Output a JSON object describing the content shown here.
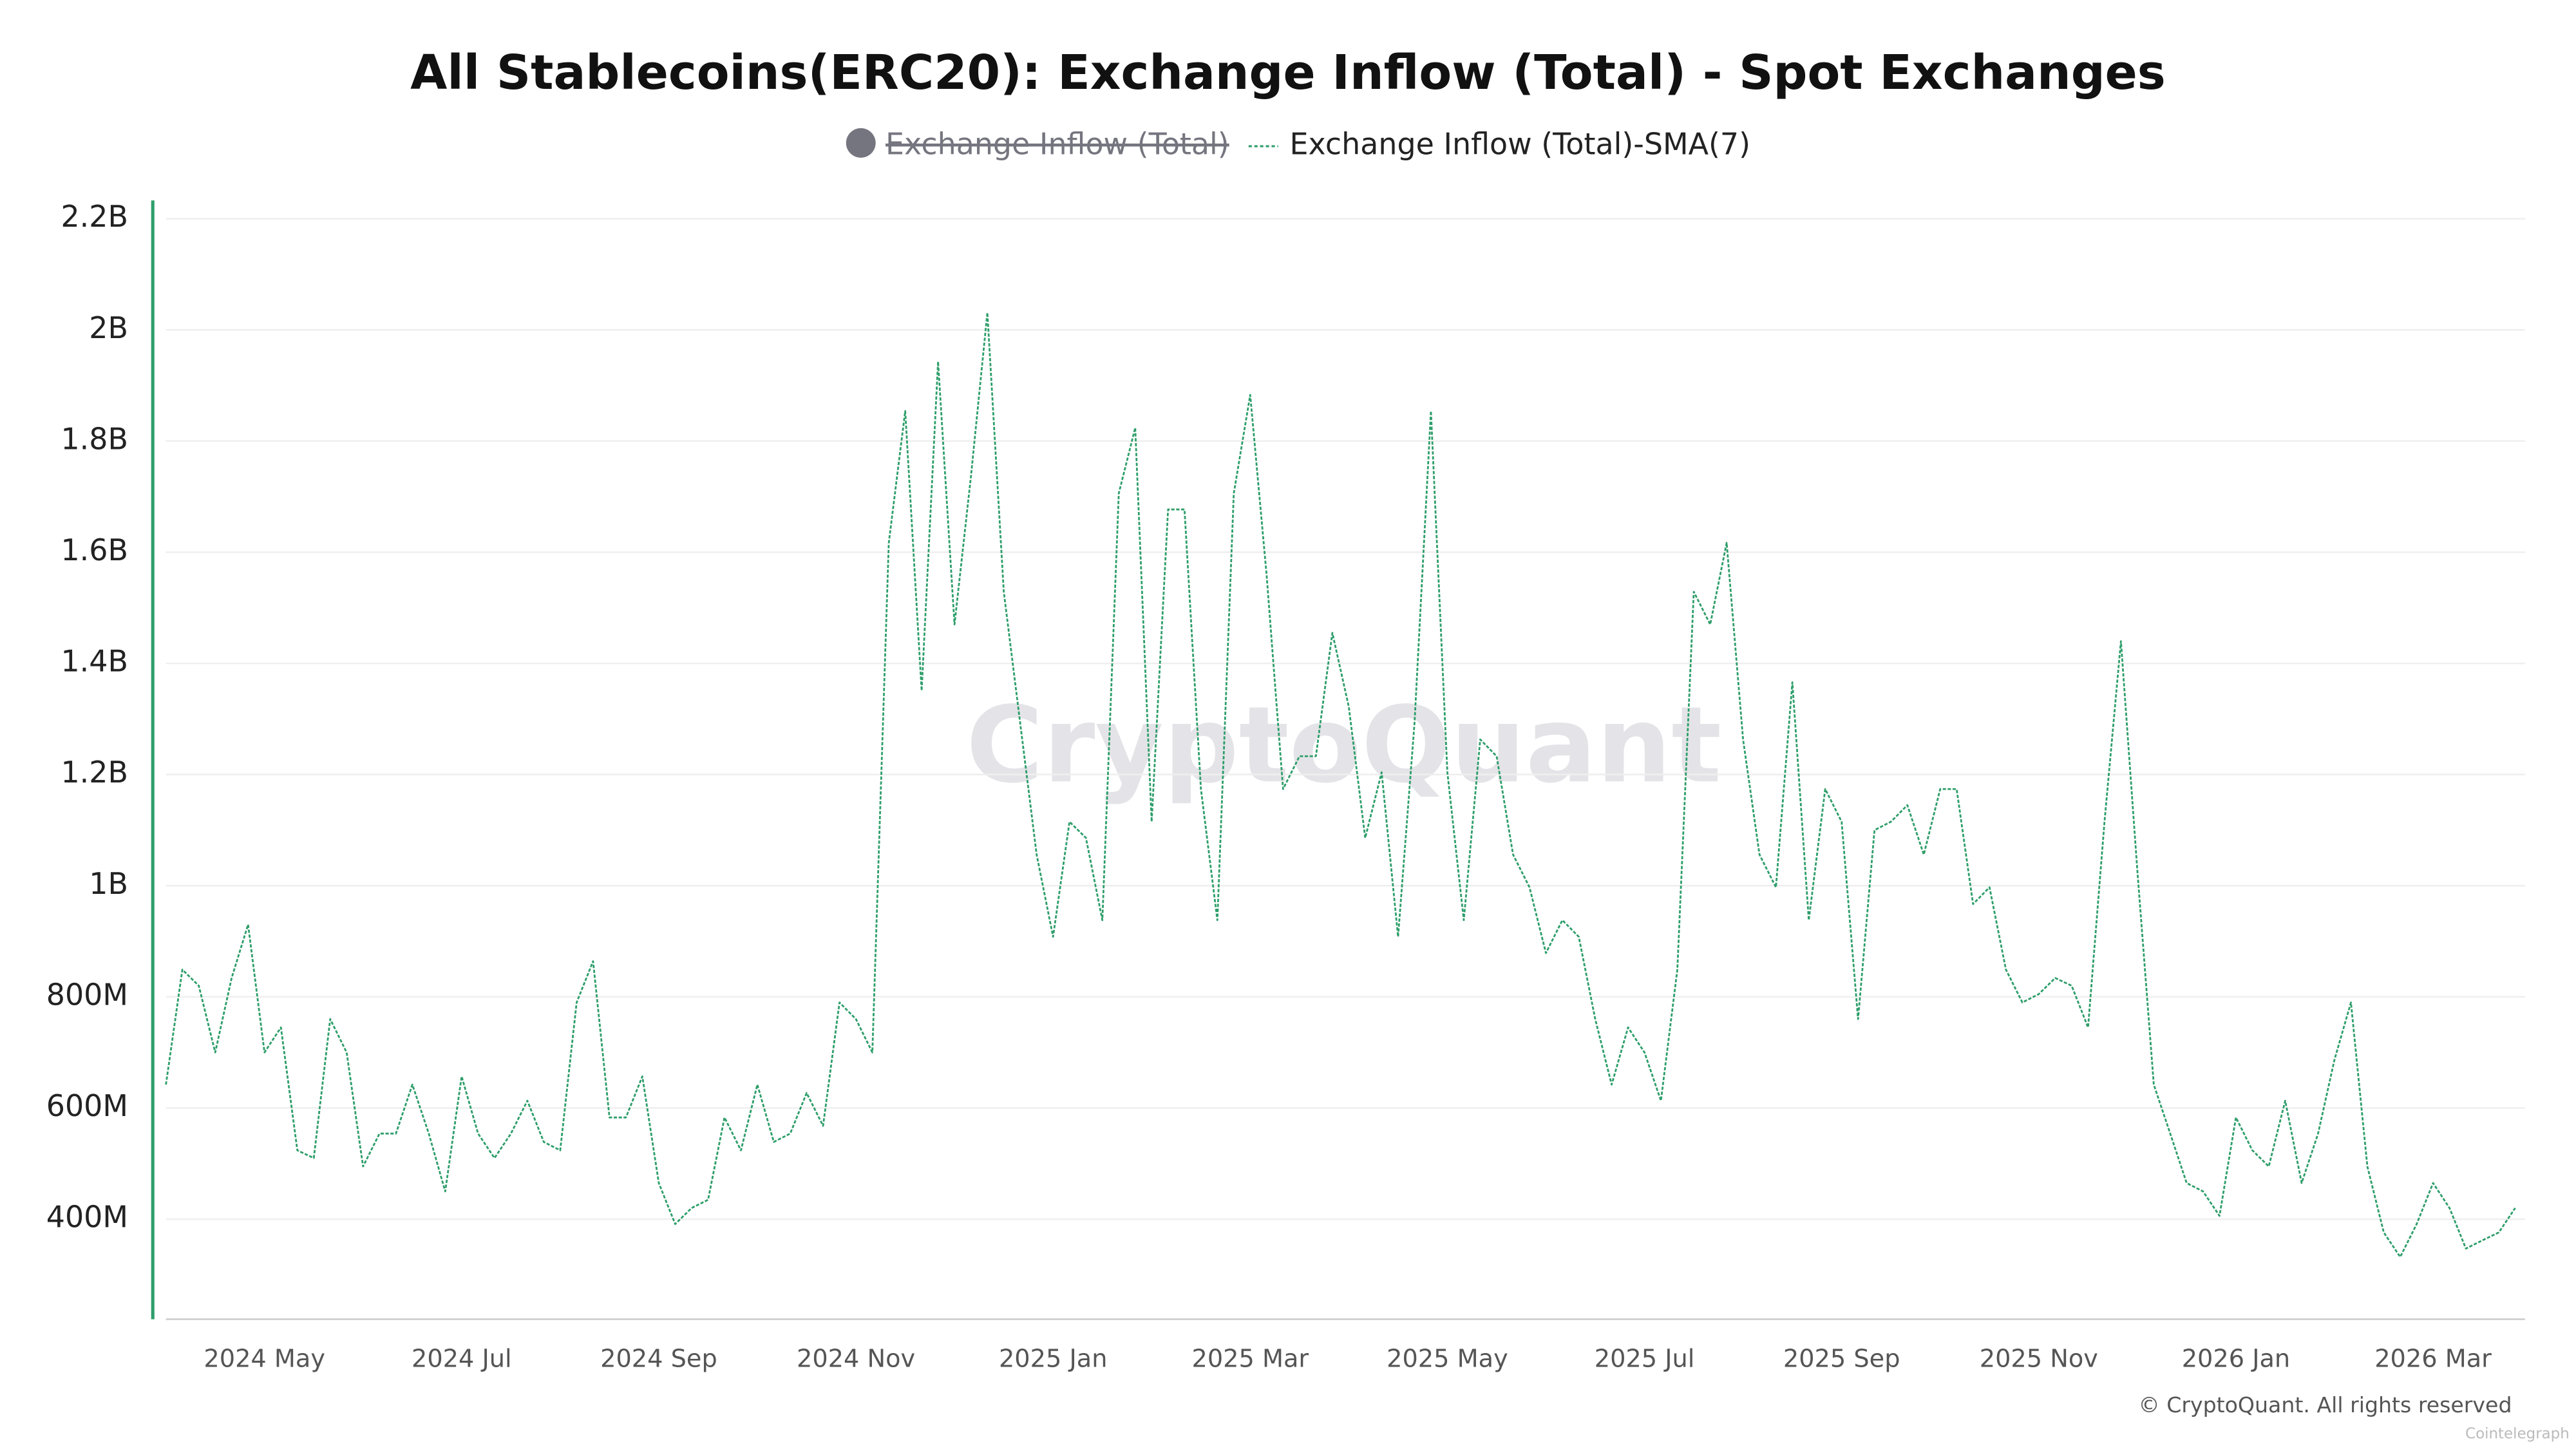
{
  "chart_data": {
    "type": "line",
    "title": "All Stablecoins(ERC20): Exchange Inflow (Total) - Spot Exchanges",
    "hidden_series": {
      "name": "Exchange Inflow (Total)",
      "color": "#75757f"
    },
    "watermark": "CryptoQuant",
    "credit": "© CryptoQuant. All rights reserved",
    "source": "Cointelegraph",
    "grid": true,
    "ylim": [
      220000000,
      2230000000
    ],
    "yticks": [
      {
        "value": 400000000,
        "label": "400M"
      },
      {
        "value": 600000000,
        "label": "600M"
      },
      {
        "value": 800000000,
        "label": "800M"
      },
      {
        "value": 1000000000,
        "label": "1B"
      },
      {
        "value": 1200000000,
        "label": "1.2B"
      },
      {
        "value": 1400000000,
        "label": "1.4B"
      },
      {
        "value": 1600000000,
        "label": "1.6B"
      },
      {
        "value": 1800000000,
        "label": "1.8B"
      },
      {
        "value": 2000000000,
        "label": "2B"
      },
      {
        "value": 2200000000,
        "label": "2.2B"
      }
    ],
    "categories": [
      null,
      null,
      null,
      null,
      null,
      null,
      "2024 May",
      null,
      null,
      null,
      null,
      null,
      null,
      null,
      null,
      null,
      null,
      null,
      "2024 Jul",
      null,
      null,
      null,
      null,
      null,
      null,
      null,
      null,
      null,
      null,
      null,
      "2024 Sep",
      null,
      null,
      null,
      null,
      null,
      null,
      null,
      null,
      null,
      null,
      null,
      "2024 Nov",
      null,
      null,
      null,
      null,
      null,
      null,
      null,
      null,
      null,
      null,
      null,
      "2025 Jan",
      null,
      null,
      null,
      null,
      null,
      null,
      null,
      null,
      null,
      null,
      null,
      "2025 Mar",
      null,
      null,
      null,
      null,
      null,
      null,
      null,
      null,
      null,
      null,
      null,
      "2025 May",
      null,
      null,
      null,
      null,
      null,
      null,
      null,
      null,
      null,
      null,
      null,
      "2025 Jul",
      null,
      null,
      null,
      null,
      null,
      null,
      null,
      null,
      null,
      null,
      null,
      "2025 Sep",
      null,
      null,
      null,
      null,
      null,
      null,
      null,
      null,
      null,
      null,
      null,
      "2025 Nov",
      null,
      null,
      null,
      null,
      null,
      null,
      null,
      null,
      null,
      null,
      null,
      "2026 Jan",
      null,
      null,
      null,
      null,
      null,
      null,
      null,
      null,
      null,
      null,
      null,
      "2026 Mar",
      null,
      null,
      null,
      null,
      null
    ],
    "series": [
      {
        "name": "Exchange Inflow (Total)-SMA(7)",
        "color": "#2e9e6a",
        "values": [
          642000000,
          849000000,
          820000000,
          700000000,
          834000000,
          930000000,
          700000000,
          745000000,
          524000000,
          510000000,
          760000000,
          700000000,
          495000000,
          554000000,
          554000000,
          642000000,
          554000000,
          450000000,
          657000000,
          554000000,
          510000000,
          554000000,
          613000000,
          539000000,
          524000000,
          790000000,
          864000000,
          583000000,
          583000000,
          657000000,
          465000000,
          391000000,
          420000000,
          435000000,
          583000000,
          524000000,
          642000000,
          539000000,
          554000000,
          627000000,
          568000000,
          790000000,
          760000000,
          700000000,
          1617000000,
          1854000000,
          1351000000,
          1943000000,
          1470000000,
          1736000000,
          2031000000,
          1529000000,
          1292000000,
          1056000000,
          908000000,
          1115000000,
          1086000000,
          938000000,
          1706000000,
          1824000000,
          1115000000,
          1677000000,
          1677000000,
          1174000000,
          938000000,
          1706000000,
          1883000000,
          1558000000,
          1174000000,
          1233000000,
          1233000000,
          1455000000,
          1322000000,
          1086000000,
          1204000000,
          908000000,
          1292000000,
          1854000000,
          1204000000,
          938000000,
          1263000000,
          1233000000,
          1056000000,
          997000000,
          879000000,
          938000000,
          908000000,
          760000000,
          642000000,
          745000000,
          700000000,
          613000000,
          849000000,
          1529000000,
          1470000000,
          1617000000,
          1263000000,
          1056000000,
          997000000,
          1366000000,
          938000000,
          1174000000,
          1115000000,
          760000000,
          1100000000,
          1115000000,
          1145000000,
          1056000000,
          1174000000,
          1174000000,
          967000000,
          997000000,
          849000000,
          790000000,
          805000000,
          834000000,
          820000000,
          745000000,
          1115000000,
          1440000000,
          1027000000,
          642000000,
          554000000,
          465000000,
          450000000,
          406000000,
          583000000,
          524000000,
          495000000,
          613000000,
          465000000,
          554000000,
          687000000,
          790000000,
          495000000,
          376000000,
          332000000,
          391000000,
          465000000,
          420000000,
          347000000,
          362000000,
          376000000,
          420000000
        ]
      }
    ]
  }
}
